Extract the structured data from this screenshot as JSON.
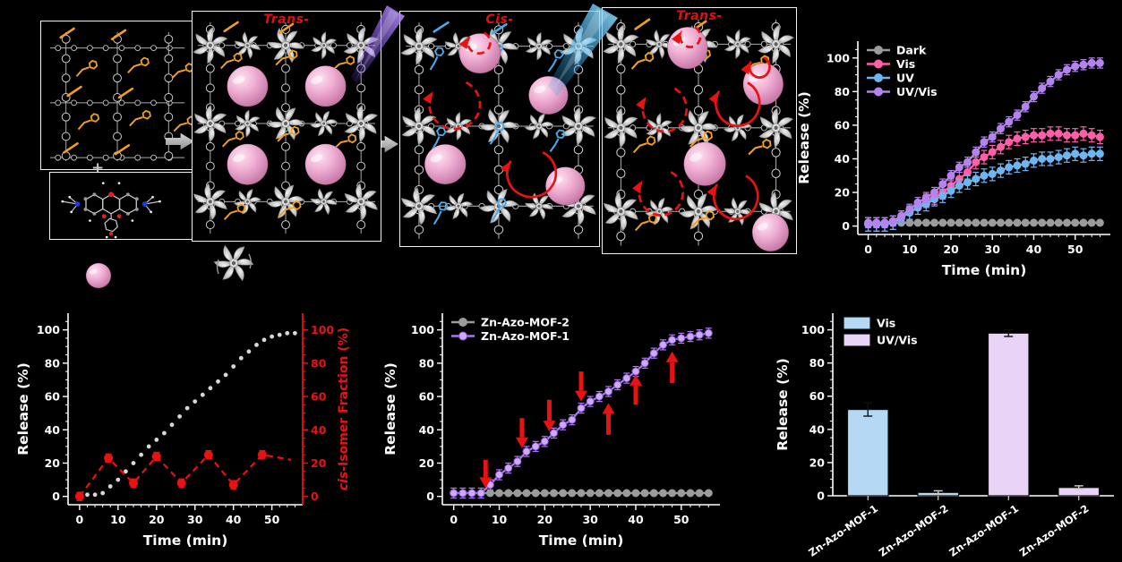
{
  "figure": {
    "background": "#000000"
  },
  "scheme": {
    "plus": "+",
    "step_labels": [
      "Trans-",
      "Cis-",
      "Trans-"
    ]
  },
  "colors": {
    "axis": "#ffffff",
    "red": "#e81212",
    "dark_gray": "#9b9b9b",
    "vis_pink": "#ff5fa8",
    "uv_blue": "#6db6f2",
    "uvvis_purple": "#b583f0",
    "purple_fill": "#d0aaf8",
    "bar_vis_blue": "#b5d9f5",
    "bar_uvvis_lavender": "#e9d4f8",
    "trans_azo_orange": "#f0a01d",
    "cis_azo_blue": "#4aa8e8",
    "sphere_pink": "#eba7cc",
    "uv_beam_purple": "#8f5df0",
    "vis_beam_blue": "#2fb4f2",
    "framework_gray": "#d0d0d0"
  },
  "chart_data": [
    {
      "id": "photo-release-kinetics",
      "type": "line",
      "xlabel": "Time (min)",
      "ylabel": "Release (%)",
      "xlim": [
        -2.5,
        58.5
      ],
      "ylim": [
        -5,
        110
      ],
      "xticks": [
        0,
        10,
        20,
        30,
        40,
        50
      ],
      "yticks": [
        0,
        20,
        40,
        60,
        80,
        100
      ],
      "legend_position": "top-left",
      "x": [
        0,
        2,
        4,
        6,
        8,
        10,
        12,
        14,
        16,
        18,
        20,
        22,
        24,
        26,
        28,
        30,
        32,
        34,
        36,
        38,
        40,
        42,
        44,
        46,
        48,
        50,
        52,
        54,
        56
      ],
      "series": [
        {
          "name": "Dark",
          "color": "#9b9b9b",
          "err": 0,
          "values": [
            2,
            2,
            2,
            2,
            2,
            2,
            2,
            2,
            2,
            2,
            2,
            2,
            2,
            2,
            2,
            2,
            2,
            2,
            2,
            2,
            2,
            2,
            2,
            2,
            2,
            2,
            2,
            2,
            2
          ]
        },
        {
          "name": "Vis",
          "color": "#ff5fa8",
          "err": 4,
          "values": [
            1,
            1,
            1,
            2,
            5,
            8,
            11,
            15,
            17,
            20,
            24,
            28,
            32,
            38,
            41,
            44,
            47,
            50,
            52,
            53,
            54,
            54,
            55,
            55,
            54,
            54,
            55,
            54,
            53
          ]
        },
        {
          "name": "UV",
          "color": "#6db6f2",
          "err": 4,
          "values": [
            1,
            1,
            1,
            2,
            5,
            8,
            11,
            13,
            16,
            18,
            21,
            24,
            26,
            28,
            30,
            31,
            33,
            35,
            36,
            37,
            39,
            40,
            40,
            41,
            42,
            43,
            42,
            43,
            43
          ]
        },
        {
          "name": "UV/Vis",
          "color": "#b583f0",
          "err": 3,
          "values": [
            2,
            2,
            2,
            3,
            6,
            10,
            14,
            17,
            20,
            25,
            30,
            35,
            38,
            44,
            50,
            53,
            58,
            62,
            66,
            71,
            77,
            82,
            86,
            90,
            93,
            95,
            96,
            97,
            97
          ]
        }
      ]
    },
    {
      "id": "release-vs-cis-isomer-fraction",
      "type": "line",
      "xlabel": "Time (min)",
      "ylabel": "Release (%)",
      "y2label": "cis-Isomer Fraction (%)",
      "xlim": [
        -3,
        58
      ],
      "ylim": [
        -5,
        110
      ],
      "xticks": [
        0,
        10,
        20,
        30,
        40,
        50
      ],
      "yticks": [
        0,
        20,
        40,
        60,
        80,
        100
      ],
      "y2ticks": [
        0,
        20,
        40,
        60,
        80,
        100
      ],
      "x": [
        0,
        2,
        4,
        6,
        8,
        10,
        12,
        14,
        16,
        18,
        20,
        22,
        24,
        26,
        28,
        30,
        32,
        34,
        36,
        38,
        40,
        42,
        44,
        46,
        48,
        50,
        52,
        54,
        56
      ],
      "series": [
        {
          "name": "Release",
          "color": "#d8d8d8",
          "line": false,
          "msize": 1.9,
          "err": 0,
          "values": [
            0,
            1,
            1,
            2,
            6,
            10,
            15,
            20,
            25,
            30,
            34,
            38,
            43,
            48,
            53,
            57,
            61,
            65,
            69,
            73,
            78,
            83,
            87,
            91,
            94,
            96,
            97,
            98,
            98
          ]
        },
        {
          "name": "cis-Isomer Fraction",
          "color": "#e81212",
          "dash": "7 5",
          "msize": 4.5,
          "err": 2.5,
          "markers": 8,
          "x": [
            0,
            7.5,
            14,
            20,
            26.5,
            33.5,
            40,
            47.5,
            55
          ],
          "values": [
            0,
            23,
            8,
            24,
            8,
            25,
            7,
            25,
            22
          ]
        }
      ]
    },
    {
      "id": "mof1-vs-mof2-release",
      "type": "line",
      "xlabel": "Time (min)",
      "ylabel": "Release (%)",
      "xlim": [
        -2.5,
        58.5
      ],
      "ylim": [
        -5,
        110
      ],
      "xticks": [
        0,
        10,
        20,
        30,
        40,
        50
      ],
      "yticks": [
        0,
        20,
        40,
        60,
        80,
        100
      ],
      "legend_position": "top-left",
      "x": [
        0,
        2,
        4,
        6,
        8,
        10,
        12,
        14,
        16,
        18,
        20,
        22,
        24,
        26,
        28,
        30,
        32,
        34,
        36,
        38,
        40,
        42,
        44,
        46,
        48,
        50,
        52,
        54,
        56
      ],
      "series": [
        {
          "name": "Zn-Azo-MOF-2",
          "color": "#9b9b9b",
          "err": 0,
          "values": [
            2,
            2,
            2,
            2,
            2,
            2,
            2,
            2,
            2,
            2,
            2,
            2,
            2,
            2,
            2,
            2,
            2,
            2,
            2,
            2,
            2,
            2,
            2,
            2,
            2,
            2,
            2,
            2,
            2
          ]
        },
        {
          "name": "Zn-Azo-MOF-1",
          "color": "#a678ee",
          "fill": "#d0aaf8",
          "edge": "#8d55e0",
          "err": 3,
          "values": [
            2,
            2,
            2,
            2,
            7,
            13,
            17,
            21,
            27,
            30,
            33,
            38,
            43,
            46,
            53,
            57,
            60,
            63,
            67,
            71,
            75,
            80,
            86,
            91,
            94,
            95,
            96,
            97,
            98
          ]
        }
      ],
      "annotations": [
        {
          "t": 7,
          "from": 22,
          "to": 5
        },
        {
          "t": 15,
          "from": 47,
          "to": 29
        },
        {
          "t": 21,
          "from": 58,
          "to": 39
        },
        {
          "t": 28,
          "from": 75,
          "to": 57
        },
        {
          "t": 34,
          "from": 37,
          "to": 56
        },
        {
          "t": 40,
          "from": 55,
          "to": 73
        },
        {
          "t": 48,
          "from": 68,
          "to": 87
        }
      ]
    },
    {
      "id": "release-summary-bars",
      "type": "bar",
      "ylabel": "Release (%)",
      "ylim": [
        0,
        110
      ],
      "yticks": [
        0,
        20,
        40,
        60,
        80,
        100
      ],
      "legend": [
        {
          "name": "Vis",
          "color": "#b5d9f5"
        },
        {
          "name": "UV/Vis",
          "color": "#e9d4f8"
        }
      ],
      "categories": [
        "Zn-Azo-MOF-1",
        "Zn-Azo-MOF-2",
        "Zn-Azo-MOF-1",
        "Zn-Azo-MOF-2"
      ],
      "values": [
        52,
        2,
        98,
        5
      ],
      "errors": [
        4,
        1,
        2,
        1
      ],
      "bar_colors": [
        "#b5d9f5",
        "#b5d9f5",
        "#e9d4f8",
        "#e9d4f8"
      ]
    }
  ]
}
